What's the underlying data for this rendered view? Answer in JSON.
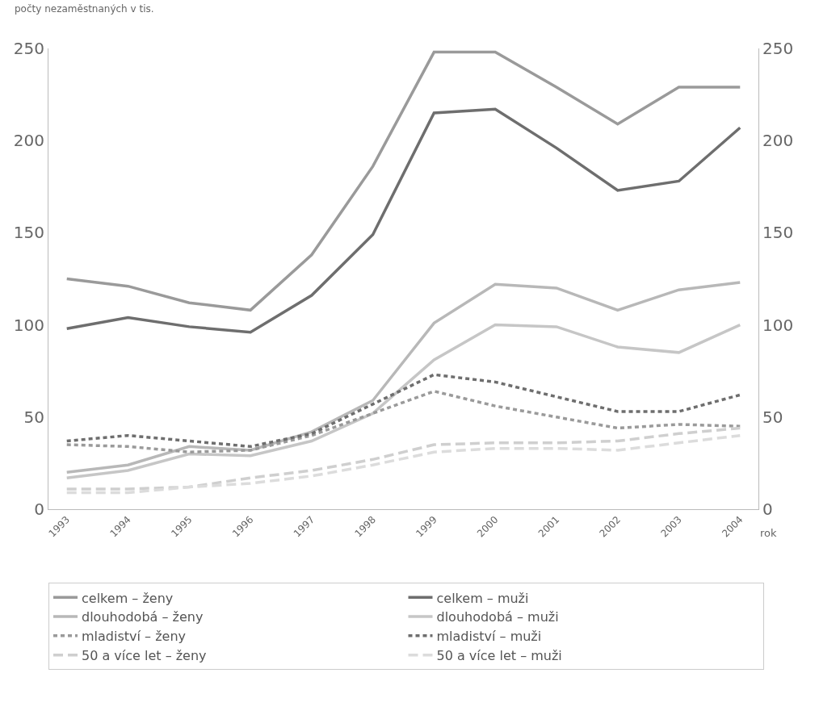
{
  "chart_data": {
    "type": "line",
    "ylabel": "počty nezaměstnaných v tis.",
    "xlabel": "rok",
    "categories": [
      "1993",
      "1994",
      "1995",
      "1996",
      "1997",
      "1998",
      "1999",
      "2000",
      "2001",
      "2002",
      "2003",
      "2004"
    ],
    "ylim": [
      0,
      250
    ],
    "yticks": [
      0,
      50,
      100,
      150,
      200,
      250
    ],
    "y2lim": [
      0,
      250
    ],
    "y2ticks": [
      0,
      50,
      100,
      150,
      200,
      250
    ],
    "legend": "bottom",
    "marker": "none",
    "series": [
      {
        "name": "celkem – ženy",
        "color": "#9a9a9a",
        "line_style": "solid",
        "values": [
          125,
          121,
          112,
          108,
          138,
          186,
          248,
          248,
          229,
          209,
          229,
          229
        ]
      },
      {
        "name": "celkem – muži",
        "color": "#6e6e6e",
        "line_style": "solid",
        "values": [
          98,
          104,
          99,
          96,
          116,
          149,
          215,
          217,
          196,
          173,
          178,
          207
        ]
      },
      {
        "name": "dlouhodobá – ženy",
        "color": "#b8b8b8",
        "line_style": "solid",
        "values": [
          20,
          24,
          34,
          32,
          42,
          59,
          101,
          122,
          120,
          108,
          119,
          123
        ]
      },
      {
        "name": "dlouhodobá – muži",
        "color": "#c6c6c6",
        "line_style": "solid",
        "values": [
          17,
          21,
          30,
          29,
          37,
          52,
          81,
          100,
          99,
          88,
          85,
          100
        ]
      },
      {
        "name": "mladiství – ženy",
        "color": "#9a9a9a",
        "line_style": "dotted",
        "values": [
          35,
          34,
          31,
          32,
          40,
          52,
          64,
          56,
          50,
          44,
          46,
          45
        ]
      },
      {
        "name": "mladiství – muži",
        "color": "#6e6e6e",
        "line_style": "dotted",
        "values": [
          37,
          40,
          37,
          34,
          41,
          57,
          73,
          69,
          61,
          53,
          53,
          62
        ]
      },
      {
        "name": "50 a více let – ženy",
        "color": "#cfcfcf",
        "line_style": "dashed",
        "values": [
          11,
          11,
          12,
          17,
          21,
          27,
          35,
          36,
          36,
          37,
          41,
          44
        ]
      },
      {
        "name": "50 a více let – muži",
        "color": "#dcdcdc",
        "line_style": "dashed",
        "values": [
          9,
          9,
          12,
          14,
          18,
          24,
          31,
          33,
          33,
          32,
          36,
          40
        ]
      }
    ]
  }
}
